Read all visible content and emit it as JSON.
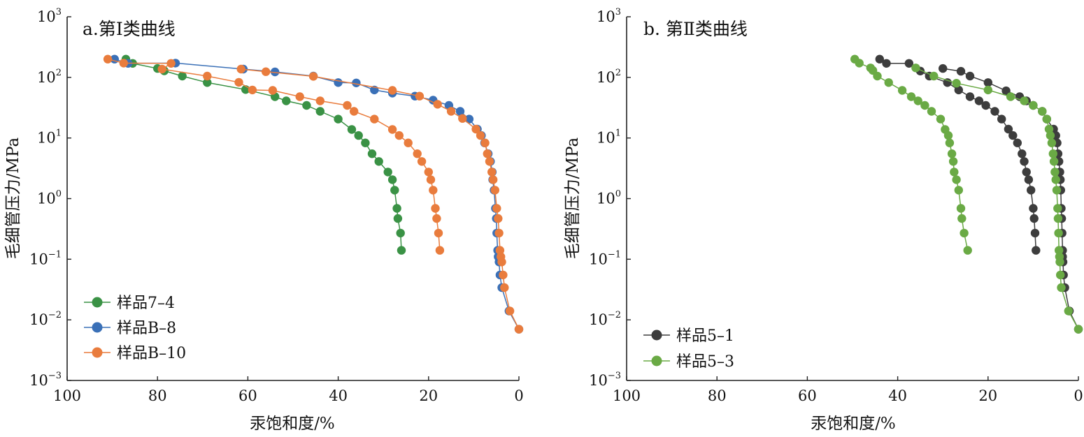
{
  "chart_data": [
    {
      "type": "line",
      "title": "a.第Ⅰ类曲线",
      "xlabel": "汞饱和度/%",
      "ylabel": "毛细管压力/MPa",
      "xlim": [
        100,
        0
      ],
      "x_reversed": true,
      "x_ticks": [
        "100",
        "80",
        "60",
        "40",
        "20",
        "0"
      ],
      "y_scale": "log",
      "ylim": [
        0.001,
        1000
      ],
      "y_ticks": [
        {
          "base": "10",
          "exp": "−3"
        },
        {
          "base": "10",
          "exp": "−2"
        },
        {
          "base": "10",
          "exp": "−1"
        },
        {
          "base": "10",
          "exp": "0"
        },
        {
          "base": "10",
          "exp": "1"
        },
        {
          "base": "10",
          "exp": "2"
        },
        {
          "base": "10",
          "exp": "3"
        }
      ],
      "legend_position": "bottom-left",
      "series": [
        {
          "name": "样品7–4",
          "color": "#3a9245",
          "points": [
            [
              87,
              200
            ],
            [
              85.5,
              170
            ],
            [
              80,
              140
            ],
            [
              78.5,
              128
            ],
            [
              74.5,
              105
            ],
            [
              69,
              82
            ],
            [
              60.5,
              63
            ],
            [
              54,
              48
            ],
            [
              51.5,
              41
            ],
            [
              47,
              34.5
            ],
            [
              44,
              27.5
            ],
            [
              40,
              20.5
            ],
            [
              37,
              13.8
            ],
            [
              35.5,
              11
            ],
            [
              34,
              8.3
            ],
            [
              32.5,
              5.5
            ],
            [
              31,
              4.1
            ],
            [
              29,
              2.75
            ],
            [
              28,
              2.05
            ],
            [
              27.5,
              1.38
            ],
            [
              27,
              0.69
            ],
            [
              26.8,
              0.47
            ],
            [
              26.2,
              0.27
            ],
            [
              26,
              0.14
            ]
          ]
        },
        {
          "name": "样品B–8",
          "color": "#3a70b7",
          "points": [
            [
              89.5,
              200
            ],
            [
              86.5,
              170
            ],
            [
              76,
              172
            ],
            [
              61,
              137
            ],
            [
              54,
              123
            ],
            [
              45.5,
              105
            ],
            [
              40,
              82
            ],
            [
              36,
              81
            ],
            [
              32,
              62
            ],
            [
              28,
              55
            ],
            [
              23,
              49
            ],
            [
              19,
              42
            ],
            [
              15.5,
              34.5
            ],
            [
              13,
              27.5
            ],
            [
              11,
              20.5
            ],
            [
              9.2,
              14
            ],
            [
              8.3,
              11
            ],
            [
              7.6,
              8.3
            ],
            [
              6.8,
              5.5
            ],
            [
              6.3,
              4.1
            ],
            [
              5.9,
              2.75
            ],
            [
              5.8,
              2.05
            ],
            [
              5.5,
              1.38
            ],
            [
              5.2,
              0.69
            ],
            [
              5,
              0.47
            ],
            [
              4.9,
              0.27
            ],
            [
              4.7,
              0.14
            ],
            [
              4.6,
              0.11
            ],
            [
              4.4,
              0.09
            ],
            [
              4.2,
              0.055
            ],
            [
              3.8,
              0.034
            ],
            [
              2.2,
              0.014
            ],
            [
              0,
              0.007
            ]
          ]
        },
        {
          "name": "样品B–10",
          "color": "#e97c3d",
          "points": [
            [
              91,
              200
            ],
            [
              87.5,
              172
            ],
            [
              77,
              170
            ],
            [
              79,
              137
            ],
            [
              69,
              105
            ],
            [
              62,
              83
            ],
            [
              59,
              62
            ],
            [
              54.5,
              61
            ],
            [
              48.5,
              48
            ],
            [
              44,
              41
            ],
            [
              38,
              34.5
            ],
            [
              36.5,
              27.5
            ],
            [
              32,
              20.5
            ],
            [
              28,
              13.8
            ],
            [
              26.5,
              11
            ],
            [
              24.5,
              8.3
            ],
            [
              22.5,
              5.5
            ],
            [
              21.5,
              4.1
            ],
            [
              20,
              2.75
            ],
            [
              19.5,
              2.05
            ],
            [
              19,
              1.38
            ],
            [
              18.5,
              0.69
            ],
            [
              18.2,
              0.47
            ],
            [
              17.8,
              0.27
            ],
            [
              17.5,
              0.14
            ]
          ]
        },
        {
          "name": "",
          "color": "#e97c3d",
          "hidden_legend": true,
          "points": [
            [
              61.5,
              137
            ],
            [
              56,
              124
            ],
            [
              45.5,
              104
            ],
            [
              28,
              61
            ],
            [
              22,
              49
            ],
            [
              18,
              36
            ],
            [
              15,
              27.5
            ],
            [
              12.5,
              21
            ],
            [
              9.5,
              14
            ],
            [
              8.5,
              11
            ],
            [
              7.5,
              8.3
            ],
            [
              7,
              5.5
            ],
            [
              6.5,
              4.1
            ],
            [
              6,
              2.75
            ],
            [
              5.7,
              2.05
            ],
            [
              5.3,
              1.38
            ],
            [
              4.9,
              0.69
            ],
            [
              4.6,
              0.47
            ],
            [
              4.4,
              0.27
            ],
            [
              4.2,
              0.14
            ],
            [
              4,
              0.11
            ],
            [
              3.8,
              0.09
            ],
            [
              3.5,
              0.055
            ],
            [
              3.2,
              0.034
            ],
            [
              2,
              0.014
            ],
            [
              0,
              0.007
            ]
          ]
        }
      ]
    },
    {
      "type": "line",
      "title": "b. 第Ⅱ类曲线",
      "xlabel": "汞饱和度/%",
      "ylabel": "毛细管压力/MPa",
      "xlim": [
        100,
        0
      ],
      "x_reversed": true,
      "x_ticks": [
        "100",
        "80",
        "60",
        "40",
        "20",
        "0"
      ],
      "y_scale": "log",
      "ylim": [
        0.001,
        1000
      ],
      "y_ticks": [
        {
          "base": "10",
          "exp": "−3"
        },
        {
          "base": "10",
          "exp": "−2"
        },
        {
          "base": "10",
          "exp": "−1"
        },
        {
          "base": "10",
          "exp": "0"
        },
        {
          "base": "10",
          "exp": "1"
        },
        {
          "base": "10",
          "exp": "2"
        },
        {
          "base": "10",
          "exp": "3"
        }
      ],
      "legend_position": "bottom-left",
      "series": [
        {
          "name": "样品5–1",
          "color": "#3d3d3d",
          "points": [
            [
              44,
              200
            ],
            [
              42.5,
              170
            ],
            [
              37.5,
              170
            ],
            [
              35,
              127
            ],
            [
              33,
              105
            ],
            [
              29,
              82
            ],
            [
              26.5,
              62
            ],
            [
              24,
              48
            ],
            [
              22,
              41
            ],
            [
              20.5,
              34.5
            ],
            [
              18.5,
              27.5
            ],
            [
              17,
              20.5
            ],
            [
              15.5,
              14
            ],
            [
              14.5,
              11
            ],
            [
              13.5,
              8.3
            ],
            [
              12.5,
              5.5
            ],
            [
              12,
              4.1
            ],
            [
              11.5,
              2.75
            ],
            [
              11,
              2.05
            ],
            [
              10.5,
              1.38
            ],
            [
              10,
              0.69
            ],
            [
              9.8,
              0.47
            ],
            [
              9.6,
              0.27
            ],
            [
              9.4,
              0.14
            ]
          ]
        },
        {
          "name": "样品5–3",
          "color": "#6aaa45",
          "points": [
            [
              49.5,
              200
            ],
            [
              48.5,
              172
            ],
            [
              46,
              143
            ],
            [
              45.5,
              130
            ],
            [
              44.5,
              105
            ],
            [
              42,
              82
            ],
            [
              39,
              61
            ],
            [
              37,
              48
            ],
            [
              35.5,
              41
            ],
            [
              34,
              34.5
            ],
            [
              32.5,
              27.5
            ],
            [
              30.5,
              20.5
            ],
            [
              29.5,
              13.8
            ],
            [
              28.8,
              11
            ],
            [
              28.5,
              8.3
            ],
            [
              28,
              5.5
            ],
            [
              27.7,
              4.1
            ],
            [
              27.5,
              2.75
            ],
            [
              27,
              2.05
            ],
            [
              26.5,
              1.38
            ],
            [
              26,
              0.69
            ],
            [
              25.8,
              0.47
            ],
            [
              25.3,
              0.27
            ],
            [
              24.5,
              0.14
            ]
          ]
        },
        {
          "name": "",
          "color": "#3d3d3d",
          "hidden_legend": true,
          "points": [
            [
              30,
              140
            ],
            [
              26,
              126
            ],
            [
              24,
              105
            ],
            [
              20,
              82
            ],
            [
              16,
              60
            ],
            [
              13,
              48
            ],
            [
              11.5,
              41
            ],
            [
              10,
              34.5
            ],
            [
              8,
              27.5
            ],
            [
              7,
              20.5
            ],
            [
              5.5,
              14
            ],
            [
              5,
              11
            ],
            [
              4.7,
              8.3
            ],
            [
              4.5,
              5.5
            ],
            [
              4.3,
              4.1
            ],
            [
              4.1,
              2.75
            ],
            [
              4,
              2.05
            ],
            [
              3.9,
              1.38
            ],
            [
              3.8,
              0.69
            ],
            [
              3.7,
              0.47
            ],
            [
              3.6,
              0.27
            ],
            [
              3.5,
              0.14
            ],
            [
              3.5,
              0.11
            ],
            [
              3.4,
              0.09
            ],
            [
              3.3,
              0.055
            ],
            [
              3,
              0.034
            ],
            [
              2,
              0.014
            ],
            [
              0,
              0.007
            ]
          ]
        },
        {
          "name": "",
          "color": "#6aaa45",
          "hidden_legend": true,
          "points": [
            [
              36,
              143
            ],
            [
              32,
              105
            ],
            [
              27,
              80
            ],
            [
              20,
              62
            ],
            [
              15,
              48
            ],
            [
              12,
              41
            ],
            [
              10,
              34.5
            ],
            [
              8,
              27.5
            ],
            [
              7,
              20.5
            ],
            [
              6.5,
              14
            ],
            [
              6.2,
              11
            ],
            [
              5.9,
              8.3
            ],
            [
              5.6,
              5.5
            ],
            [
              5.4,
              4.1
            ],
            [
              5.2,
              2.75
            ],
            [
              5,
              2.05
            ],
            [
              4.8,
              1.38
            ],
            [
              4.6,
              0.69
            ],
            [
              4.5,
              0.47
            ],
            [
              4.4,
              0.27
            ],
            [
              4.3,
              0.14
            ],
            [
              4.2,
              0.11
            ],
            [
              4.1,
              0.09
            ],
            [
              4,
              0.055
            ],
            [
              3.8,
              0.034
            ],
            [
              2.2,
              0.014
            ],
            [
              0,
              0.007
            ]
          ]
        }
      ]
    }
  ]
}
